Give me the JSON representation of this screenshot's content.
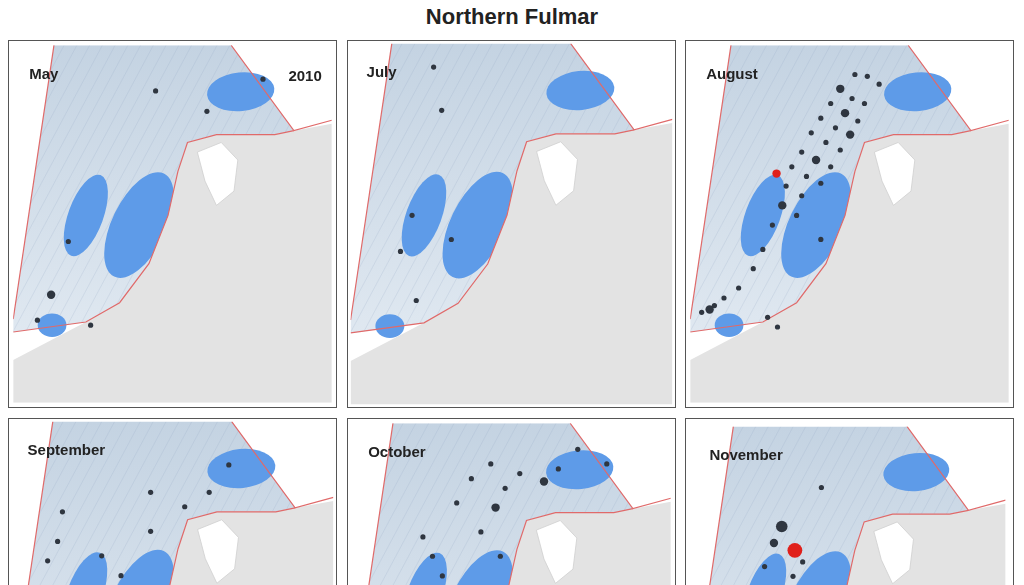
{
  "title": "Northern Fulmar",
  "chart_data": [
    {
      "type": "scatter",
      "title": "May",
      "annotation": "2010",
      "xlim": [
        0,
        100
      ],
      "ylim": [
        0,
        100
      ],
      "tick_labels": false,
      "grid": false,
      "x": [
        44.7,
        60.8,
        17.3,
        11.9,
        7.6,
        24.3,
        78.4
      ],
      "y": [
        87.2,
        81.5,
        45.1,
        30.2,
        23.1,
        21.7,
        90.5
      ],
      "sizes": [
        1,
        1,
        1,
        2,
        1,
        1,
        1
      ],
      "colors": [
        "#2f3640",
        "#2f3640",
        "#2f3640",
        "#2f3640",
        "#2f3640",
        "#2f3640",
        "#2f3640"
      ]
    },
    {
      "type": "scatter",
      "title": "July",
      "xlim": [
        0,
        100
      ],
      "ylim": [
        0,
        100
      ],
      "tick_labels": false,
      "grid": false,
      "x": [
        25.8,
        28.3,
        19.1,
        15.5,
        31.3,
        20.4
      ],
      "y": [
        93.5,
        81.5,
        52.4,
        42.4,
        45.7,
        28.8
      ],
      "sizes": [
        1,
        1,
        1,
        1,
        1,
        1
      ],
      "colors": [
        "#2f3640",
        "#2f3640",
        "#2f3640",
        "#2f3640",
        "#2f3640",
        "#2f3640"
      ]
    },
    {
      "type": "scatter",
      "title": "August",
      "xlim": [
        0,
        100
      ],
      "ylim": [
        0,
        100
      ],
      "tick_labels": false,
      "grid": false,
      "x": [
        51.7,
        55.6,
        59.3,
        47.1,
        50.8,
        54.7,
        44.1,
        48.6,
        52.6,
        41.0,
        45.6,
        50.2,
        38.0,
        42.6,
        47.1,
        35.0,
        39.5,
        44.1,
        31.9,
        36.5,
        41.0,
        30.1,
        35.0,
        28.9,
        33.4,
        25.8,
        22.8,
        19.8,
        15.2,
        10.6,
        6.1,
        3.6,
        7.6,
        27.1,
        41.0,
        24.3,
        27.4
      ],
      "y": [
        91.8,
        91.3,
        89.1,
        87.8,
        85.1,
        83.7,
        83.7,
        81.0,
        78.8,
        79.6,
        76.9,
        75.0,
        75.5,
        72.8,
        70.7,
        70.1,
        67.9,
        66.0,
        66.0,
        63.3,
        61.4,
        60.6,
        57.9,
        55.2,
        52.4,
        49.7,
        42.9,
        37.5,
        32.1,
        29.3,
        26.1,
        25.3,
        27.2,
        64.1,
        45.7,
        23.9,
        21.2
      ],
      "sizes": [
        1,
        1,
        1,
        2,
        1,
        1,
        1,
        2,
        1,
        1,
        1,
        2,
        1,
        1,
        1,
        1,
        2,
        1,
        1,
        1,
        1,
        1,
        1,
        2,
        1,
        1,
        1,
        1,
        1,
        1,
        2,
        1,
        1,
        2,
        1,
        1,
        1
      ],
      "colors": [
        "#2f3640",
        "#2f3640",
        "#2f3640",
        "#2f3640",
        "#2f3640",
        "#2f3640",
        "#2f3640",
        "#2f3640",
        "#2f3640",
        "#2f3640",
        "#2f3640",
        "#2f3640",
        "#2f3640",
        "#2f3640",
        "#2f3640",
        "#2f3640",
        "#2f3640",
        "#2f3640",
        "#2f3640",
        "#2f3640",
        "#2f3640",
        "#2f3640",
        "#2f3640",
        "#2f3640",
        "#2f3640",
        "#2f3640",
        "#2f3640",
        "#2f3640",
        "#2f3640",
        "#2f3640",
        "#2f3640",
        "#2f3640",
        "#2f3640",
        "#e0201b",
        "#2f3640",
        "#2f3640",
        "#2f3640"
      ]
    },
    {
      "type": "scatter",
      "title": "September",
      "xlim": [
        0,
        100
      ],
      "ylim": [
        0,
        100
      ],
      "tick_labels": false,
      "grid": false,
      "x": [
        15.8,
        14.3,
        11.2,
        43.2,
        53.8,
        61.4,
        43.2,
        34.0,
        28.0,
        67.5
      ],
      "y": [
        75.0,
        66.8,
        61.4,
        69.6,
        76.4,
        80.4,
        80.4,
        57.3,
        62.8,
        88.0
      ],
      "sizes": [
        1,
        1,
        1,
        1,
        1,
        1,
        1,
        1,
        1,
        1
      ],
      "colors": [
        "#2f3640",
        "#2f3640",
        "#2f3640",
        "#2f3640",
        "#2f3640",
        "#2f3640",
        "#2f3640",
        "#2f3640",
        "#2f3640",
        "#2f3640"
      ]
    },
    {
      "type": "scatter",
      "title": "October",
      "xlim": [
        0,
        100
      ],
      "ylim": [
        0,
        100
      ],
      "tick_labels": false,
      "grid": false,
      "x": [
        25.2,
        40.4,
        45.0,
        48.0,
        52.6,
        60.2,
        64.7,
        37.4,
        43.5,
        46.5,
        28.3,
        22.2,
        70.8,
        32.8,
        79.9
      ],
      "y": [
        62.8,
        69.6,
        76.4,
        81.8,
        85.9,
        83.7,
        87.2,
        84.5,
        88.6,
        62.8,
        57.3,
        68.2,
        92.7,
        77.7,
        88.6
      ],
      "sizes": [
        1,
        1,
        2,
        1,
        1,
        2,
        1,
        1,
        1,
        1,
        1,
        1,
        1,
        1,
        1
      ],
      "colors": [
        "#2f3640",
        "#2f3640",
        "#2f3640",
        "#2f3640",
        "#2f3640",
        "#2f3640",
        "#2f3640",
        "#2f3640",
        "#2f3640",
        "#2f3640",
        "#2f3640",
        "#2f3640",
        "#2f3640",
        "#2f3640",
        "#2f3640"
      ]
    },
    {
      "type": "scatter",
      "title": "November",
      "xlim": [
        0,
        100
      ],
      "ylim": [
        0,
        100
      ],
      "tick_labels": false,
      "grid": false,
      "x": [
        32.5,
        28.3,
        25.8,
        31.9,
        41.0,
        22.8,
        35.0
      ],
      "y": [
        64.7,
        71.5,
        66.8,
        57.3,
        82.6,
        60.1,
        61.4
      ],
      "sizes": [
        4,
        3,
        2,
        1,
        1,
        1,
        1
      ],
      "colors": [
        "#e0201b",
        "#2f3640",
        "#2f3640",
        "#2f3640",
        "#2f3640",
        "#2f3640",
        "#2f3640"
      ]
    }
  ]
}
